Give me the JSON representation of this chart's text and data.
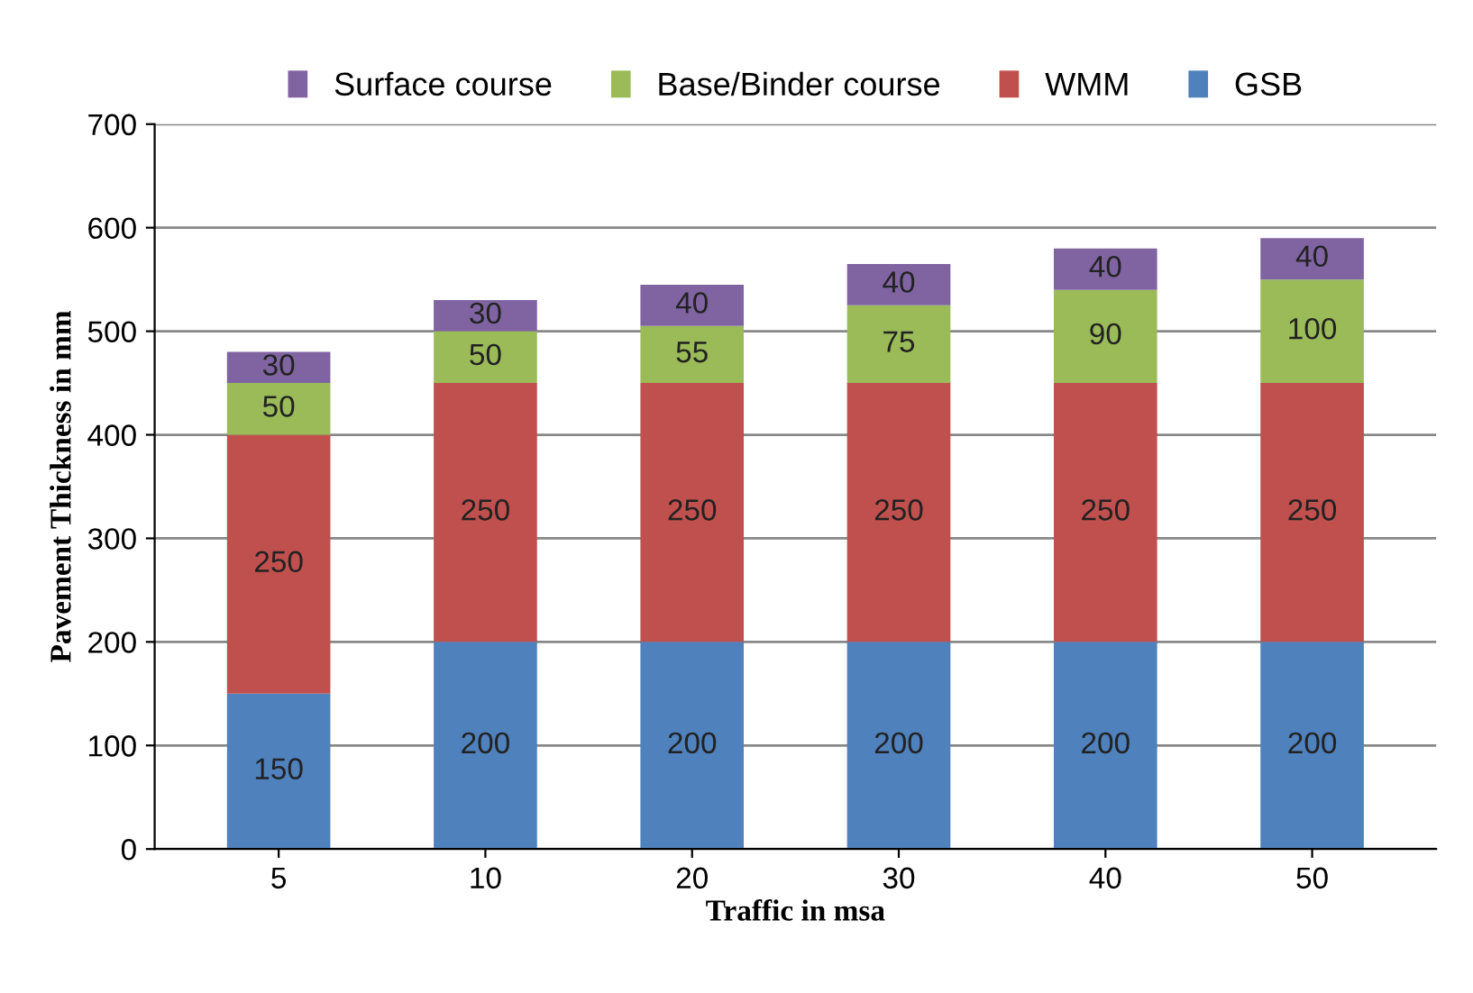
{
  "chart_data": {
    "type": "bar",
    "stacked": true,
    "xlabel": "Traffic in msa",
    "ylabel": "Pavement Thickness in mm",
    "categories": [
      "5",
      "10",
      "20",
      "30",
      "40",
      "50"
    ],
    "series": [
      {
        "name": "GSB",
        "color": "#4f81bd",
        "values": [
          150,
          200,
          200,
          200,
          200,
          200
        ]
      },
      {
        "name": "WMM",
        "color": "#c0504d",
        "values": [
          250,
          250,
          250,
          250,
          250,
          250
        ]
      },
      {
        "name": "Base/Binder course",
        "color": "#9bbb59",
        "values": [
          50,
          50,
          55,
          75,
          90,
          100
        ]
      },
      {
        "name": "Surface course",
        "color": "#8064a2",
        "values": [
          30,
          30,
          40,
          40,
          40,
          40
        ]
      }
    ],
    "ylim": [
      0,
      700
    ],
    "yticks": [
      0,
      100,
      200,
      300,
      400,
      500,
      600,
      700
    ],
    "grid": "y",
    "legend": "top",
    "data_labels": true
  }
}
